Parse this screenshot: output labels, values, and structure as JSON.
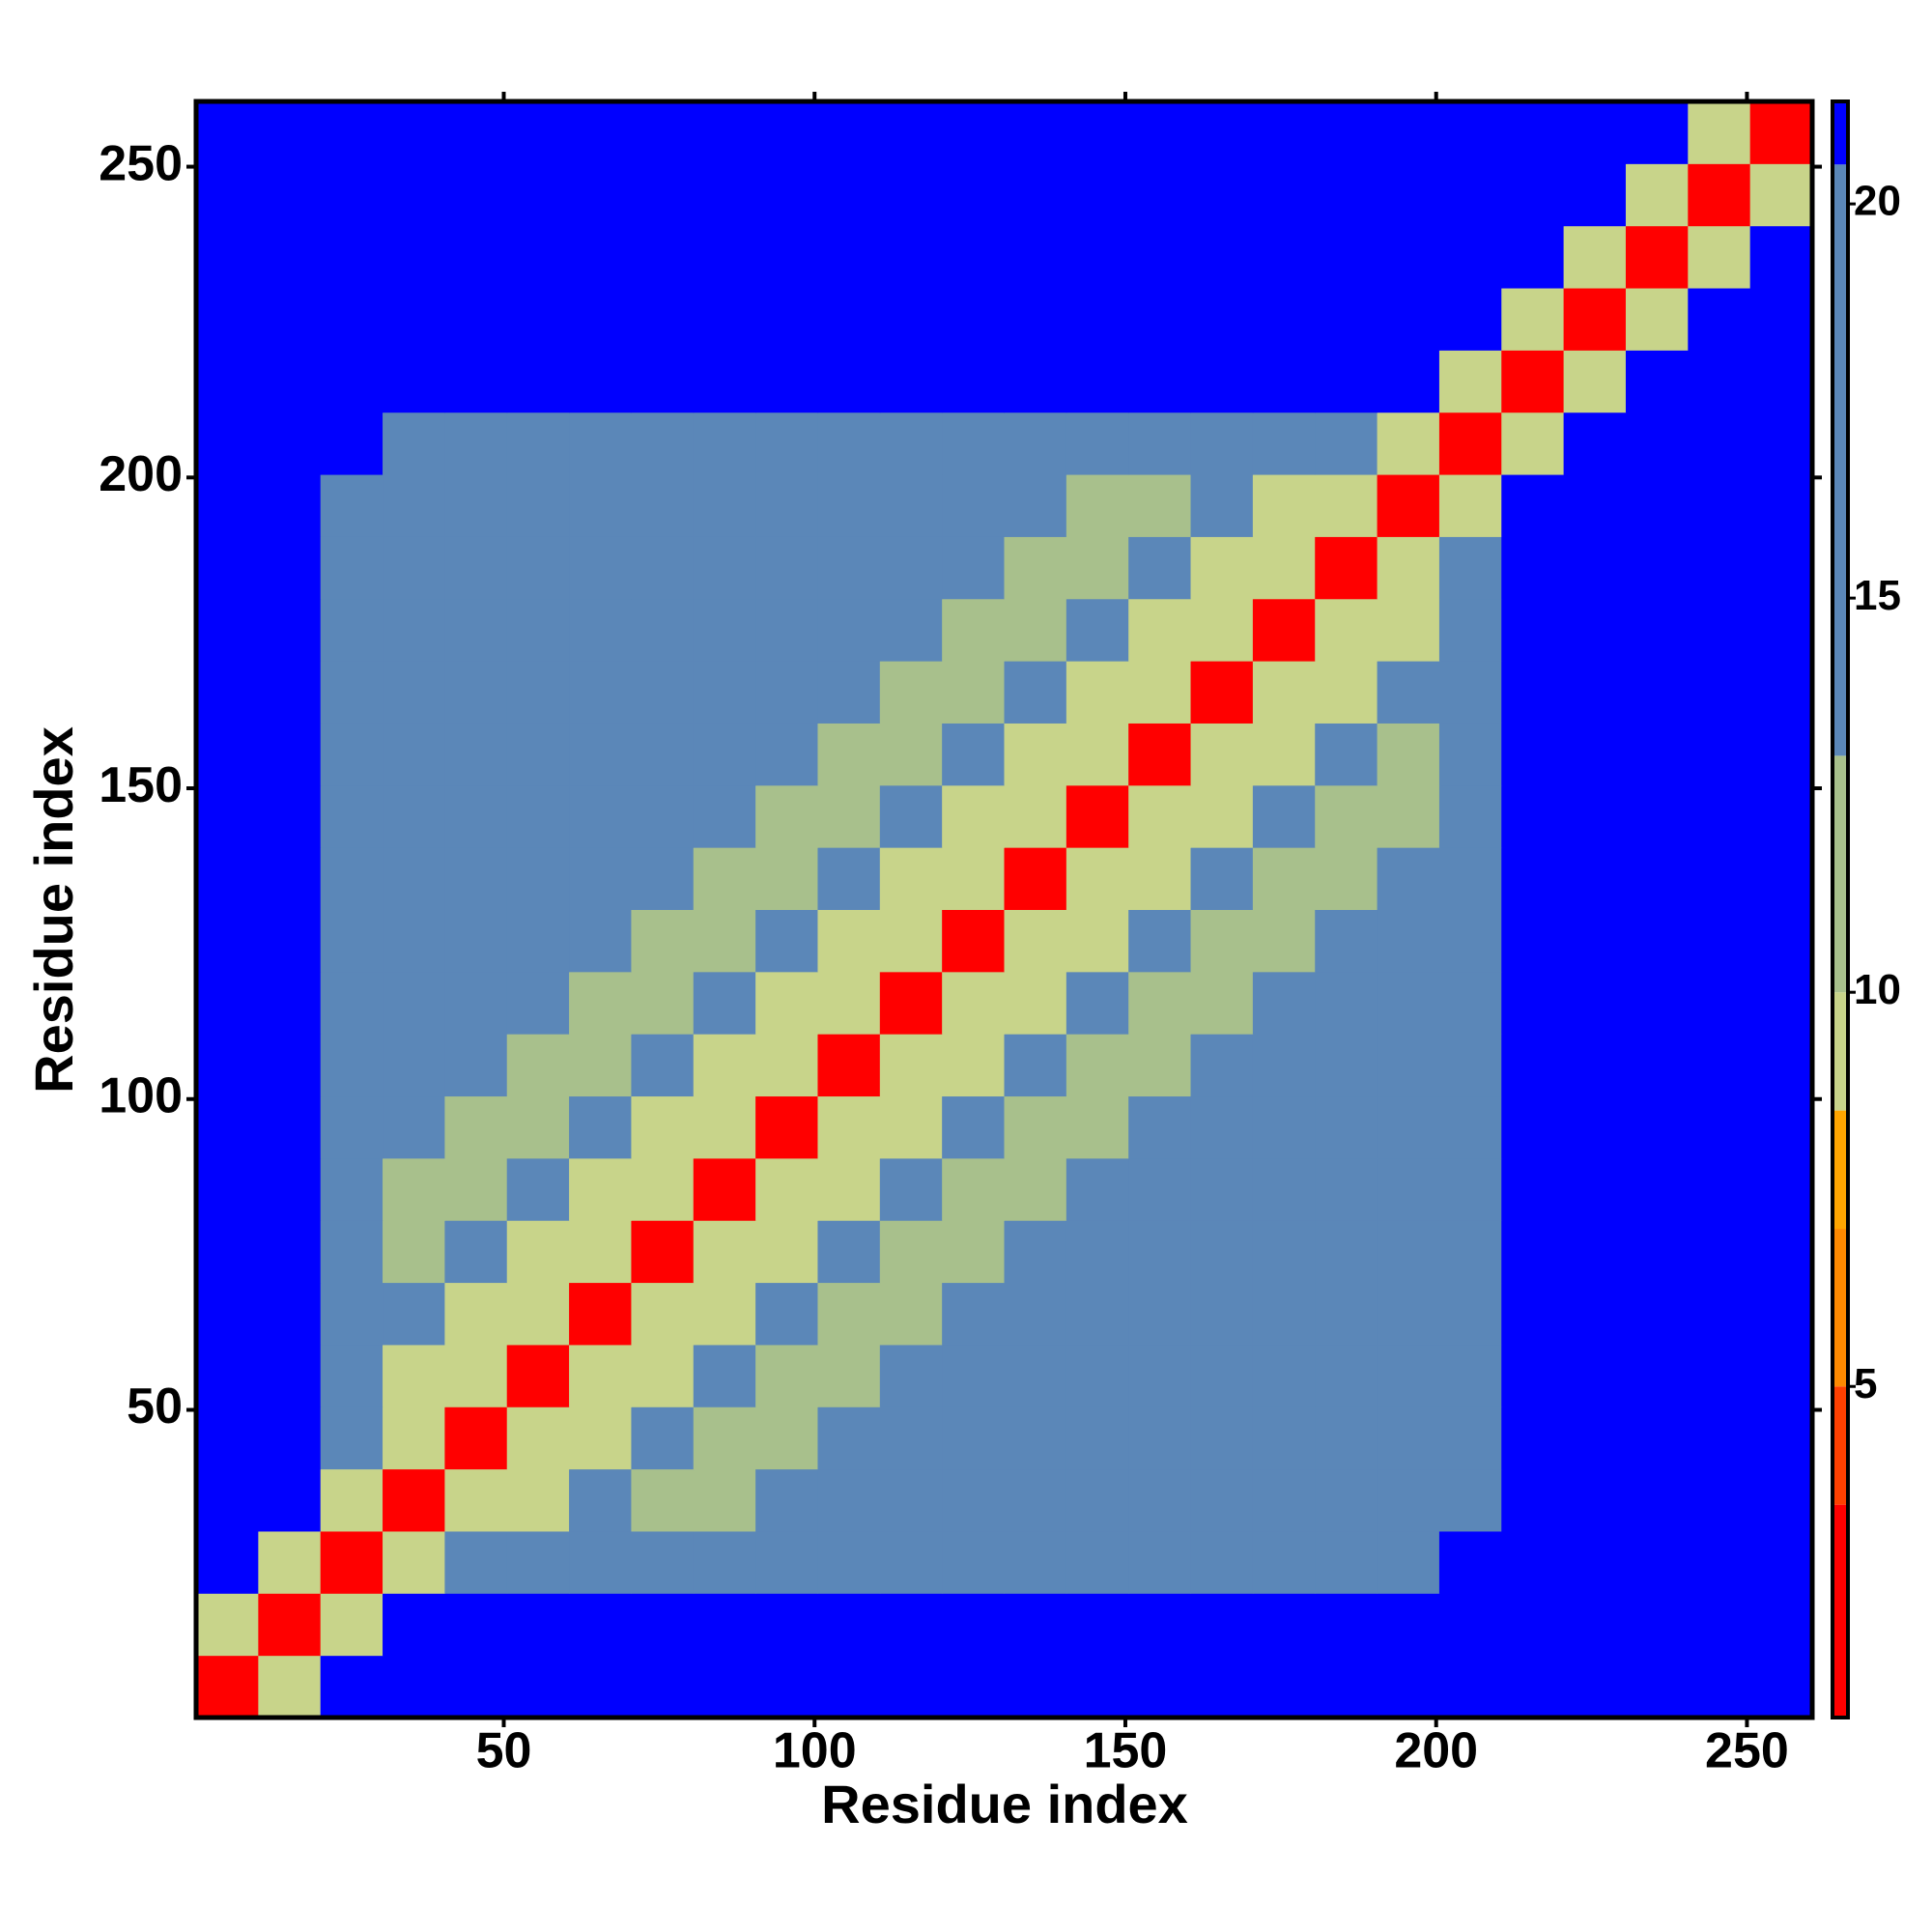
{
  "chart_data": {
    "type": "heatmap",
    "x_label": "Residue index",
    "y_label": "Residue index",
    "xlim": [
      0.5,
      260.5
    ],
    "ylim": [
      0.5,
      260.5
    ],
    "xticks": [
      50,
      100,
      150,
      200,
      250
    ],
    "yticks": [
      50,
      100,
      150,
      200,
      250
    ],
    "x": [
      5.5,
      15.5,
      25.5,
      35.5,
      45.5,
      55.5,
      65.5,
      75.5,
      85.5,
      95.5,
      105.5,
      115.5,
      125.5,
      135.5,
      145.5,
      155.5,
      165.5,
      175.5,
      185.5,
      195.5,
      205.5,
      215.5,
      225.5,
      235.5,
      245.5,
      255.5
    ],
    "y": [
      5.5,
      15.5,
      25.5,
      35.5,
      45.5,
      55.5,
      65.5,
      75.5,
      85.5,
      95.5,
      105.5,
      115.5,
      125.5,
      135.5,
      145.5,
      155.5,
      165.5,
      175.5,
      185.5,
      195.5,
      205.5,
      215.5,
      225.5,
      235.5,
      245.5,
      255.5
    ],
    "z": [
      [
        3,
        9,
        21,
        21,
        21,
        21,
        21,
        21,
        21,
        21,
        21,
        21,
        21,
        21,
        21,
        21,
        21,
        21,
        21,
        21,
        21,
        21,
        21,
        21,
        21,
        21
      ],
      [
        9,
        3,
        9,
        21,
        21,
        21,
        21,
        21,
        21,
        21,
        21,
        21,
        21,
        21,
        21,
        21,
        21,
        21,
        21,
        21,
        21,
        21,
        21,
        21,
        21,
        21
      ],
      [
        21,
        9,
        3,
        9,
        18,
        18,
        18,
        18,
        18,
        18,
        18,
        18,
        18,
        18,
        18,
        18,
        18,
        18,
        18,
        18,
        21,
        21,
        21,
        21,
        21,
        21
      ],
      [
        21,
        21,
        9,
        3,
        9,
        9,
        16,
        12,
        12,
        16,
        16,
        16,
        16,
        16,
        16,
        16,
        16,
        16,
        16,
        16,
        18,
        21,
        21,
        21,
        21,
        21
      ],
      [
        21,
        21,
        18,
        9,
        3,
        9,
        9,
        16,
        12,
        12,
        16,
        16,
        16,
        16,
        16,
        16,
        16,
        16,
        16,
        16,
        18,
        21,
        21,
        21,
        21,
        21
      ],
      [
        21,
        21,
        18,
        9,
        9,
        3,
        9,
        9,
        16,
        12,
        12,
        16,
        16,
        16,
        16,
        16,
        16,
        16,
        16,
        16,
        18,
        21,
        21,
        21,
        21,
        21
      ],
      [
        21,
        21,
        18,
        16,
        9,
        9,
        3,
        9,
        9,
        16,
        12,
        12,
        16,
        16,
        16,
        16,
        16,
        16,
        16,
        16,
        18,
        21,
        21,
        21,
        21,
        21
      ],
      [
        21,
        21,
        18,
        12,
        16,
        9,
        9,
        3,
        9,
        9,
        16,
        12,
        12,
        16,
        16,
        16,
        16,
        16,
        16,
        16,
        18,
        21,
        21,
        21,
        21,
        21
      ],
      [
        21,
        21,
        18,
        12,
        12,
        16,
        9,
        9,
        3,
        9,
        9,
        16,
        12,
        12,
        16,
        16,
        16,
        16,
        16,
        16,
        18,
        21,
        21,
        21,
        21,
        21
      ],
      [
        21,
        21,
        18,
        16,
        12,
        12,
        16,
        9,
        9,
        3,
        9,
        9,
        16,
        12,
        12,
        16,
        16,
        16,
        16,
        16,
        18,
        21,
        21,
        21,
        21,
        21
      ],
      [
        21,
        21,
        18,
        16,
        16,
        12,
        12,
        16,
        9,
        9,
        3,
        9,
        9,
        16,
        12,
        12,
        16,
        16,
        16,
        16,
        18,
        21,
        21,
        21,
        21,
        21
      ],
      [
        21,
        21,
        18,
        16,
        16,
        16,
        12,
        12,
        16,
        9,
        9,
        3,
        9,
        9,
        16,
        12,
        12,
        16,
        16,
        16,
        18,
        21,
        21,
        21,
        21,
        21
      ],
      [
        21,
        21,
        18,
        16,
        16,
        16,
        16,
        12,
        12,
        16,
        9,
        9,
        3,
        9,
        9,
        16,
        12,
        12,
        16,
        16,
        18,
        21,
        21,
        21,
        21,
        21
      ],
      [
        21,
        21,
        18,
        16,
        16,
        16,
        16,
        16,
        12,
        12,
        16,
        9,
        9,
        3,
        9,
        9,
        16,
        12,
        12,
        16,
        18,
        21,
        21,
        21,
        21,
        21
      ],
      [
        21,
        21,
        18,
        16,
        16,
        16,
        16,
        16,
        16,
        12,
        12,
        16,
        9,
        9,
        3,
        9,
        9,
        16,
        12,
        12,
        18,
        21,
        21,
        21,
        21,
        21
      ],
      [
        21,
        21,
        18,
        16,
        16,
        16,
        16,
        16,
        16,
        16,
        12,
        12,
        16,
        9,
        9,
        3,
        9,
        9,
        16,
        12,
        18,
        21,
        21,
        21,
        21,
        21
      ],
      [
        21,
        21,
        18,
        16,
        16,
        16,
        16,
        16,
        16,
        16,
        16,
        12,
        12,
        16,
        9,
        9,
        3,
        9,
        9,
        16,
        18,
        21,
        21,
        21,
        21,
        21
      ],
      [
        21,
        21,
        18,
        16,
        16,
        16,
        16,
        16,
        16,
        16,
        16,
        16,
        12,
        12,
        16,
        9,
        9,
        3,
        9,
        9,
        18,
        21,
        21,
        21,
        21,
        21
      ],
      [
        21,
        21,
        18,
        16,
        16,
        16,
        16,
        16,
        16,
        16,
        16,
        16,
        16,
        12,
        12,
        16,
        9,
        9,
        3,
        9,
        18,
        21,
        21,
        21,
        21,
        21
      ],
      [
        21,
        21,
        18,
        16,
        16,
        16,
        16,
        16,
        16,
        16,
        16,
        16,
        16,
        16,
        12,
        12,
        16,
        9,
        9,
        3,
        9,
        21,
        21,
        21,
        21,
        21
      ],
      [
        21,
        21,
        21,
        18,
        18,
        18,
        18,
        18,
        18,
        18,
        18,
        18,
        18,
        18,
        18,
        18,
        18,
        18,
        18,
        9,
        3,
        9,
        21,
        21,
        21,
        21
      ],
      [
        21,
        21,
        21,
        21,
        21,
        21,
        21,
        21,
        21,
        21,
        21,
        21,
        21,
        21,
        21,
        21,
        21,
        21,
        21,
        21,
        9,
        3,
        9,
        21,
        21,
        21
      ],
      [
        21,
        21,
        21,
        21,
        21,
        21,
        21,
        21,
        21,
        21,
        21,
        21,
        21,
        21,
        21,
        21,
        21,
        21,
        21,
        21,
        21,
        9,
        3,
        9,
        21,
        21
      ],
      [
        21,
        21,
        21,
        21,
        21,
        21,
        21,
        21,
        21,
        21,
        21,
        21,
        21,
        21,
        21,
        21,
        21,
        21,
        21,
        21,
        21,
        21,
        9,
        3,
        9,
        21
      ],
      [
        21,
        21,
        21,
        21,
        21,
        21,
        21,
        21,
        21,
        21,
        21,
        21,
        21,
        21,
        21,
        21,
        21,
        21,
        21,
        21,
        21,
        21,
        21,
        9,
        3,
        9
      ],
      [
        21,
        21,
        21,
        21,
        21,
        21,
        21,
        21,
        21,
        21,
        21,
        21,
        21,
        21,
        21,
        21,
        21,
        21,
        21,
        21,
        21,
        21,
        21,
        21,
        9,
        3
      ]
    ],
    "zlim": [
      0.8,
      21.3
    ],
    "zticks": [
      5,
      10,
      15,
      20
    ],
    "colorscale": [
      [
        0.8,
        "#ff0000"
      ],
      [
        3.5,
        "#ff4000"
      ],
      [
        5,
        "#ff8a00"
      ],
      [
        7,
        "#ffa500"
      ],
      [
        8.5,
        "#c8d48a"
      ],
      [
        10,
        "#a8c08c"
      ],
      [
        13,
        "#5b87b8"
      ],
      [
        20.5,
        "#0000ff"
      ]
    ]
  }
}
